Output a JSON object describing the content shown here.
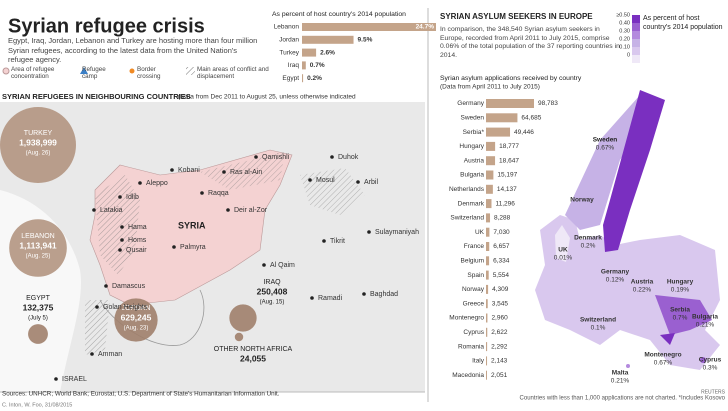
{
  "header": {
    "title": "Syrian refugee crisis",
    "intro": "Egypt, Iraq, Jordan, Lebanon and Turkey are hosting more than four million Syrian refugees, according to the latest data from the United Nation's refugee agency."
  },
  "legend": [
    "Area of refugee concentration",
    "Refugee camp",
    "Border crossing",
    "Main areas of conflict and displacement"
  ],
  "chart_data": [
    {
      "type": "bar",
      "title": "As percent of host country's 2014 population",
      "color": "#c4a48a",
      "categories": [
        "Lebanon",
        "Jordan",
        "Turkey",
        "Iraq",
        "Egypt"
      ],
      "values": [
        24.7,
        9.5,
        2.6,
        0.7,
        0.2
      ],
      "value_labels": [
        "24.7%",
        "9.5%",
        "2.6%",
        "0.7%",
        "0.2%"
      ]
    },
    {
      "type": "bar",
      "title": "Syrian asylum applications received by country",
      "subtitle": "(Data from April 2011 to July 2015)",
      "color": "#c4a48a",
      "categories": [
        "Germany",
        "Sweden",
        "Serbia*",
        "Hungary",
        "Austria",
        "Bulgaria",
        "Netherlands",
        "Denmark",
        "Switzerland",
        "UK",
        "France",
        "Belgium",
        "Spain",
        "Norway",
        "Greece",
        "Montenegro",
        "Cyprus",
        "Romania",
        "Italy",
        "Macedonia"
      ],
      "values": [
        98783,
        64685,
        49446,
        18777,
        18647,
        15197,
        14137,
        11296,
        8288,
        7030,
        6657,
        6334,
        5554,
        4309,
        3545,
        2960,
        2622,
        2292,
        2143,
        2051
      ],
      "value_labels": [
        "98,783",
        "64,685",
        "49,446",
        "18,777",
        "18,647",
        "15,197",
        "14,137",
        "11,296",
        "8,288",
        "7,030",
        "6,657",
        "6,334",
        "5,554",
        "4,309",
        "3,545",
        "2,960",
        "2,622",
        "2,292",
        "2,143",
        "2,051"
      ]
    }
  ],
  "neighbours": {
    "title": "SYRIAN REFUGEES IN NEIGHBOURING COUNTRIES",
    "note": "(Data from Dec 2011 to August 25, unless otherwise indicated",
    "bubbles": [
      {
        "name": "TURKEY",
        "value": 1938999,
        "label": "1,938,999",
        "date": "(Aug. 26)"
      },
      {
        "name": "LEBANON",
        "value": 1113941,
        "label": "1,113,941",
        "date": "(Aug. 25)"
      },
      {
        "name": "EGYPT",
        "value": 132375,
        "label": "132,375",
        "date": "(July 5)"
      },
      {
        "name": "JORDAN",
        "value": 629245,
        "label": "629,245",
        "date": "(Aug. 23)"
      },
      {
        "name": "IRAQ",
        "value": 250408,
        "label": "250,408",
        "date": "(Aug. 15)"
      },
      {
        "name": "OTHER NORTH AFRICA",
        "value": 24055,
        "label": "24,055"
      }
    ],
    "places": [
      "SYRIA",
      "Aleppo",
      "Raqqa",
      "Kobani",
      "Ras al-Ain",
      "Qamishli",
      "Latakia",
      "Idlib",
      "Hama",
      "Homs",
      "Qusair",
      "Palmyra",
      "Deir al-Zor",
      "Damascus",
      "Golan Heights",
      "Amman",
      "ISRAEL",
      "Mosul",
      "Duhok",
      "Arbil",
      "Sulaymaniyah",
      "Tikrit",
      "Ramadi",
      "Baghdad",
      "Al Qaim"
    ]
  },
  "europe": {
    "title": "SYRIAN ASYLUM SEEKERS IN EUROPE",
    "intro": "In comparison, the 348,540 Syrian asylum seekers in Europe, recorded from April 2011 to July 2015, comprise 0.06% of the total population of the 37 reporting countries in 2014.",
    "scale_title": "As percent of host country's 2014 population",
    "scale": [
      "≥0.50",
      "0.40",
      "0.30",
      "0.20",
      "0.10",
      "0"
    ],
    "countries": [
      {
        "name": "Sweden",
        "label": "0.67%"
      },
      {
        "name": "Norway"
      },
      {
        "name": "UK",
        "label": "0.01%"
      },
      {
        "name": "Denmark",
        "label": "0.2%"
      },
      {
        "name": "Germany",
        "label": "0.12%"
      },
      {
        "name": "Austria",
        "label": "0.22%"
      },
      {
        "name": "Hungary",
        "label": "0.19%"
      },
      {
        "name": "Switzerland",
        "label": "0.1%"
      },
      {
        "name": "Serbia",
        "label": "0.7%"
      },
      {
        "name": "Bulgaria",
        "label": "0.21%"
      },
      {
        "name": "Montenegro",
        "label": "0.67%"
      },
      {
        "name": "Malta",
        "label": "0.21%"
      },
      {
        "name": "Cyprus",
        "label": "0.3%"
      }
    ],
    "footnote": "Countries with less than 1,000 applications are not charted. *Includes Kosovo"
  },
  "sources": "Sources: UNHCR; World Bank; Eurostat; U.S. Department of State's Humanitarian Information Unit.",
  "credit": "C. Inton, W. Foo, 31/08/2015",
  "logo": "REUTERS"
}
